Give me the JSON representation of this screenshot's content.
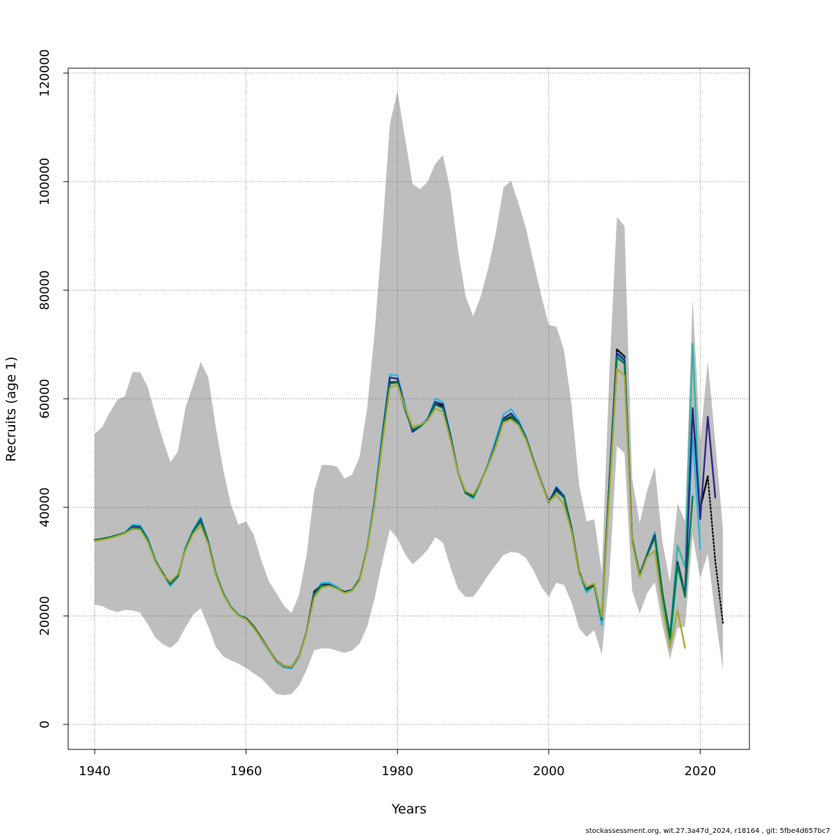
{
  "chart_data": {
    "type": "line",
    "title": "",
    "xlabel": "Years",
    "ylabel": "Recruits (age 1)",
    "xlim": [
      1936.5,
      2026.5
    ],
    "ylim": [
      -4600,
      120900
    ],
    "x_ticks": [
      1940,
      1960,
      1980,
      2000,
      2020
    ],
    "x_tick_labels": [
      "1940",
      "1960",
      "1980",
      "2000",
      "2020"
    ],
    "y_ticks": [
      0,
      20000,
      40000,
      60000,
      80000,
      100000,
      120000
    ],
    "y_tick_labels": [
      "0",
      "20000",
      "40000",
      "60000",
      "80000",
      "100000",
      "120000"
    ],
    "grid": true,
    "colors": {
      "band": "#bebebe",
      "grid": "#555555",
      "axis": "#000000"
    },
    "confidence_band": {
      "years": [
        1940,
        1941,
        1942,
        1943,
        1944,
        1945,
        1946,
        1947,
        1948,
        1949,
        1950,
        1951,
        1952,
        1953,
        1954,
        1955,
        1956,
        1957,
        1958,
        1959,
        1960,
        1961,
        1962,
        1963,
        1964,
        1965,
        1966,
        1967,
        1968,
        1969,
        1970,
        1971,
        1972,
        1973,
        1974,
        1975,
        1976,
        1977,
        1978,
        1979,
        1980,
        1981,
        1982,
        1983,
        1984,
        1985,
        1986,
        1987,
        1988,
        1989,
        1990,
        1991,
        1992,
        1993,
        1994,
        1995,
        1996,
        1997,
        1998,
        1999,
        2000,
        2001,
        2002,
        2003,
        2004,
        2005,
        2006,
        2007,
        2008,
        2009,
        2010,
        2011,
        2012,
        2013,
        2014,
        2015,
        2016,
        2017,
        2018,
        2019,
        2020,
        2021,
        2022,
        2023
      ],
      "upper": [
        53500,
        54800,
        57500,
        59800,
        60500,
        64900,
        64900,
        62200,
        57200,
        52500,
        48300,
        50300,
        58400,
        62500,
        66800,
        64000,
        54800,
        46800,
        40500,
        36800,
        37400,
        35000,
        30300,
        26400,
        24200,
        21900,
        20500,
        23900,
        31200,
        43000,
        47800,
        47800,
        47500,
        45300,
        46000,
        49300,
        58300,
        72300,
        90500,
        110700,
        116600,
        108100,
        99600,
        98600,
        100000,
        103300,
        104900,
        98300,
        87400,
        78900,
        75200,
        78800,
        84100,
        90600,
        98900,
        100200,
        96000,
        91300,
        85000,
        79000,
        73600,
        73300,
        68900,
        58800,
        44100,
        37400,
        37800,
        28000,
        65000,
        93500,
        91800,
        45400,
        37100,
        43100,
        47500,
        33700,
        26200,
        40700,
        37400,
        78400,
        52000,
        67000,
        52000,
        36000
      ],
      "lower": [
        22100,
        21800,
        21100,
        20700,
        21100,
        21000,
        20600,
        18500,
        16000,
        14800,
        14100,
        15300,
        17900,
        20200,
        21400,
        18100,
        14300,
        12500,
        11800,
        11200,
        10400,
        9400,
        8500,
        7000,
        5600,
        5400,
        5600,
        7200,
        10000,
        13700,
        14000,
        14000,
        13600,
        13200,
        13600,
        14900,
        18000,
        23300,
        30000,
        35900,
        34300,
        31400,
        29500,
        30700,
        32200,
        34500,
        33500,
        29000,
        25000,
        23500,
        23500,
        25400,
        27500,
        29400,
        31200,
        31800,
        31600,
        30600,
        28300,
        25400,
        23500,
        26100,
        25700,
        22500,
        17700,
        16100,
        17400,
        12800,
        27500,
        51300,
        50000,
        24700,
        20400,
        24200,
        26200,
        18400,
        12000,
        17800,
        18000,
        34800,
        27000,
        31500,
        20000,
        10000
      ]
    },
    "series": [
      {
        "name": "black",
        "color": "#000000",
        "dashed": false,
        "x": [
          1940,
          1941,
          1942,
          1943,
          1944,
          1945,
          1946,
          1947,
          1948,
          1949,
          1950,
          1951,
          1952,
          1953,
          1954,
          1955,
          1956,
          1957,
          1958,
          1959,
          1960,
          1961,
          1962,
          1963,
          1964,
          1965,
          1966,
          1967,
          1968,
          1969,
          1970,
          1971,
          1972,
          1973,
          1974,
          1975,
          1976,
          1977,
          1978,
          1979,
          1980,
          1981,
          1982,
          1983,
          1984,
          1985,
          1986,
          1987,
          1988,
          1989,
          1990,
          1991,
          1992,
          1993,
          1994,
          1995,
          1996,
          1997,
          1998,
          1999,
          2000,
          2001,
          2002,
          2003,
          2004,
          2005,
          2006,
          2007,
          2008,
          2009,
          2010,
          2011,
          2012,
          2013,
          2014,
          2015,
          2016,
          2017,
          2018,
          2019,
          2020,
          2021
        ],
        "values": [
          34000,
          34200,
          34500,
          34900,
          35300,
          36200,
          36200,
          34000,
          30200,
          27900,
          25900,
          27400,
          32400,
          35600,
          37400,
          33500,
          27700,
          24000,
          21600,
          20100,
          19600,
          18100,
          16000,
          13800,
          11700,
          10800,
          10600,
          12600,
          17100,
          24500,
          25800,
          25800,
          25200,
          24400,
          24800,
          26800,
          32500,
          41000,
          52400,
          63000,
          63100,
          58000,
          54300,
          54900,
          56100,
          59000,
          58700,
          53000,
          46500,
          42800,
          42200,
          44700,
          47800,
          51300,
          56000,
          56600,
          55200,
          52600,
          48600,
          44600,
          41100,
          43300,
          42200,
          36200,
          28100,
          25000,
          25700,
          19600,
          45000,
          69100,
          67800,
          34200,
          27500,
          31300,
          34700,
          24300,
          16400,
          29900,
          24200,
          58000,
          39800,
          45700
        ]
      },
      {
        "name": "black-dashed",
        "color": "#000000",
        "dashed": true,
        "x": [
          2021,
          2022,
          2023
        ],
        "values": [
          45700,
          30000,
          18700
        ]
      },
      {
        "name": "light-blue",
        "color": "#29b6e0",
        "dashed": false,
        "x": [
          1940,
          1941,
          1942,
          1943,
          1944,
          1945,
          1946,
          1947,
          1948,
          1949,
          1950,
          1951,
          1952,
          1953,
          1954,
          1955,
          1956,
          1957,
          1958,
          1959,
          1960,
          1961,
          1962,
          1963,
          1964,
          1965,
          1966,
          1967,
          1968,
          1969,
          1970,
          1971,
          1972,
          1973,
          1974,
          1975,
          1976,
          1977,
          1978,
          1979,
          1980,
          1981,
          1982,
          1983,
          1984,
          1985,
          1986,
          1987,
          1988,
          1989,
          1990,
          1991,
          1992,
          1993,
          1994,
          1995,
          1996,
          1997,
          1998,
          1999,
          2000,
          2001,
          2002,
          2003,
          2004,
          2005,
          2006,
          2007,
          2008,
          2009,
          2010,
          2011,
          2012,
          2013,
          2014,
          2015,
          2016,
          2017,
          2018,
          2019,
          2020
        ],
        "values": [
          34000,
          34200,
          34500,
          34900,
          35300,
          36800,
          36700,
          34400,
          30400,
          27800,
          25500,
          27200,
          32600,
          35800,
          38200,
          33800,
          27900,
          24200,
          21700,
          20200,
          19500,
          18000,
          15700,
          13600,
          11500,
          10500,
          10300,
          12400,
          17100,
          24200,
          26100,
          26100,
          25400,
          24200,
          24800,
          26700,
          32600,
          41800,
          53800,
          64500,
          64300,
          58900,
          54000,
          55100,
          56400,
          60000,
          59400,
          53500,
          46700,
          42600,
          41600,
          44500,
          48100,
          52600,
          57100,
          58100,
          56100,
          53000,
          48600,
          44600,
          40800,
          43800,
          42200,
          36000,
          27800,
          24300,
          25700,
          18300,
          44300,
          68500,
          67300,
          34000,
          27700,
          31400,
          35500,
          24200,
          14800,
          28800,
          24700,
          53000,
          32300
        ]
      },
      {
        "name": "teal",
        "color": "#2fb5a6",
        "dashed": false,
        "x": [
          2007,
          2008,
          2009,
          2010,
          2011,
          2012,
          2013,
          2014,
          2015,
          2016,
          2017,
          2018,
          2019,
          2020
        ],
        "values": [
          19500,
          44000,
          68000,
          66600,
          34100,
          27600,
          31300,
          35200,
          24500,
          16000,
          33000,
          29000,
          70200,
          38000
        ]
      },
      {
        "name": "navy",
        "color": "#2b2483",
        "dashed": false,
        "x": [
          1940,
          1941,
          1942,
          1943,
          1944,
          1945,
          1946,
          1947,
          1948,
          1949,
          1950,
          1951,
          1952,
          1953,
          1954,
          1955,
          1956,
          1957,
          1958,
          1959,
          1960,
          1961,
          1962,
          1963,
          1964,
          1965,
          1966,
          1967,
          1968,
          1969,
          1970,
          1971,
          1972,
          1973,
          1974,
          1975,
          1976,
          1977,
          1978,
          1979,
          1980,
          1981,
          1982,
          1983,
          1984,
          1985,
          1986,
          1987,
          1988,
          1989,
          1990,
          1991,
          1992,
          1993,
          1994,
          1995,
          1996,
          1997,
          1998,
          1999,
          2000,
          2001,
          2002,
          2003,
          2004,
          2005,
          2006,
          2007,
          2008,
          2009,
          2010,
          2011,
          2012,
          2013,
          2014,
          2015,
          2016,
          2017,
          2018,
          2019,
          2020,
          2021,
          2022
        ],
        "values": [
          34000,
          34200,
          34500,
          34900,
          35300,
          36500,
          36400,
          34100,
          30200,
          27800,
          25900,
          27400,
          32400,
          35600,
          37800,
          33700,
          27800,
          24100,
          21600,
          20100,
          19500,
          18000,
          15900,
          13700,
          11600,
          10700,
          10500,
          12500,
          17000,
          24300,
          25700,
          25700,
          25100,
          24300,
          24700,
          26700,
          32400,
          41200,
          53000,
          63900,
          63700,
          58400,
          53900,
          54900,
          56200,
          59400,
          59000,
          53200,
          46500,
          42600,
          41900,
          44600,
          47900,
          51800,
          56400,
          57300,
          55600,
          52800,
          48600,
          44600,
          41000,
          43600,
          42000,
          36100,
          28000,
          24800,
          25700,
          19300,
          44500,
          68400,
          67100,
          34100,
          27600,
          31400,
          34900,
          24300,
          16000,
          30000,
          23700,
          58300,
          37800,
          56700,
          41800
        ]
      },
      {
        "name": "dark-green",
        "color": "#007b47",
        "dashed": false,
        "x": [
          1940,
          1941,
          1942,
          1943,
          1944,
          1945,
          1946,
          1947,
          1948,
          1949,
          1950,
          1951,
          1952,
          1953,
          1954,
          1955,
          1956,
          1957,
          1958,
          1959,
          1960,
          1961,
          1962,
          1963,
          1964,
          1965,
          1966,
          1967,
          1968,
          1969,
          1970,
          1971,
          1972,
          1973,
          1974,
          1975,
          1976,
          1977,
          1978,
          1979,
          1980,
          1981,
          1982,
          1983,
          1984,
          1985,
          1986,
          1987,
          1988,
          1989,
          1990,
          1991,
          1992,
          1993,
          1994,
          1995,
          1996,
          1997,
          1998,
          1999,
          2000,
          2001,
          2002,
          2003,
          2004,
          2005,
          2006,
          2007,
          2008,
          2009,
          2010,
          2011,
          2012,
          2013,
          2014,
          2015,
          2016,
          2017,
          2018,
          2019
        ],
        "values": [
          34000,
          34200,
          34500,
          34900,
          35300,
          36300,
          36200,
          34000,
          30200,
          27800,
          25800,
          27300,
          32400,
          35600,
          37500,
          33600,
          27800,
          24100,
          21600,
          20100,
          19500,
          18000,
          15900,
          13700,
          11600,
          10700,
          10500,
          12500,
          17000,
          24000,
          25600,
          25600,
          25100,
          24300,
          24700,
          26700,
          32400,
          41000,
          52600,
          62800,
          63000,
          58100,
          54300,
          54900,
          56100,
          58900,
          58300,
          52800,
          46400,
          42600,
          41900,
          44600,
          47800,
          51500,
          56100,
          56800,
          55400,
          52700,
          48500,
          44500,
          40900,
          43000,
          41800,
          36000,
          28000,
          24800,
          25600,
          19300,
          43800,
          67600,
          66500,
          34000,
          27500,
          31200,
          34400,
          24100,
          15800,
          29400,
          23500,
          42000
        ]
      },
      {
        "name": "olive",
        "color": "#a3a834",
        "dashed": false,
        "x": [
          1940,
          1941,
          1942,
          1943,
          1944,
          1945,
          1946,
          1947,
          1948,
          1949,
          1950,
          1951,
          1952,
          1953,
          1954,
          1955,
          1956,
          1957,
          1958,
          1959,
          1960,
          1961,
          1962,
          1963,
          1964,
          1965,
          1966,
          1967,
          1968,
          1969,
          1970,
          1971,
          1972,
          1973,
          1974,
          1975,
          1976,
          1977,
          1978,
          1979,
          1980,
          1981,
          1982,
          1983,
          1984,
          1985,
          1986,
          1987,
          1988,
          1989,
          1990,
          1991,
          1992,
          1993,
          1994,
          1995,
          1996,
          1997,
          1998,
          1999,
          2000,
          2001,
          2002,
          2003,
          2004,
          2005,
          2006,
          2007,
          2008,
          2009,
          2010,
          2011,
          2012,
          2013,
          2014,
          2015,
          2016,
          2017,
          2018
        ],
        "values": [
          33800,
          34000,
          34300,
          34700,
          35200,
          36000,
          35900,
          33700,
          30000,
          27600,
          26300,
          27700,
          32100,
          35100,
          36600,
          33200,
          27500,
          23900,
          21500,
          20000,
          19400,
          17800,
          15800,
          13700,
          11600,
          10800,
          10600,
          12500,
          16900,
          23400,
          25200,
          25500,
          25000,
          24200,
          24600,
          26500,
          32200,
          40700,
          51700,
          62000,
          62600,
          58400,
          54800,
          55200,
          56000,
          58200,
          57600,
          52400,
          46500,
          43000,
          42300,
          44600,
          47700,
          51300,
          55600,
          56200,
          55100,
          52400,
          48300,
          44400,
          41000,
          42300,
          40500,
          35500,
          27800,
          25300,
          26000,
          19800,
          42300,
          65500,
          64300,
          33600,
          27100,
          30800,
          32000,
          21900,
          14100,
          21000,
          14100
        ]
      }
    ],
    "footer": "stockassessment.org, wit.27.3a47d_2024, r18164 , git: 5fbe4d657bc7"
  }
}
